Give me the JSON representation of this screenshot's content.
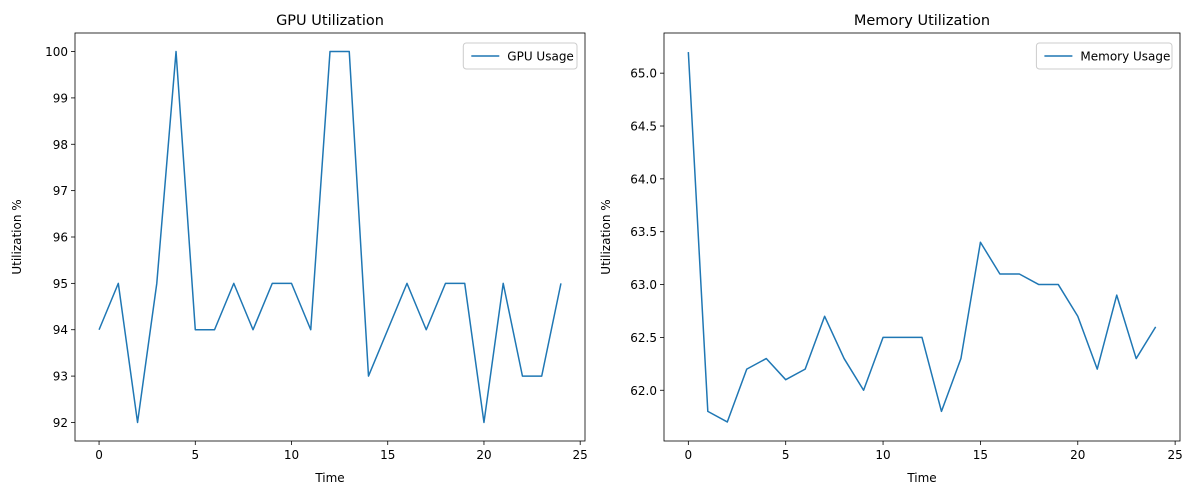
{
  "chart_data": [
    {
      "type": "line",
      "title": "GPU Utilization",
      "xlabel": "Time",
      "ylabel": "Utilization %",
      "xlim": [
        -1.25,
        25.25
      ],
      "ylim": [
        91.6,
        100.4
      ],
      "xticks": [
        0,
        5,
        10,
        15,
        20,
        25
      ],
      "yticks": [
        92,
        93,
        94,
        95,
        96,
        97,
        98,
        99,
        100
      ],
      "grid": false,
      "legend_position": "top-right",
      "series": [
        {
          "name": "GPU Usage",
          "color": "#1f77b4",
          "x": [
            0,
            1,
            2,
            3,
            4,
            5,
            6,
            7,
            8,
            9,
            10,
            11,
            12,
            13,
            14,
            15,
            16,
            17,
            18,
            19,
            20,
            21,
            22,
            23,
            24
          ],
          "y": [
            94,
            95,
            92,
            95,
            100,
            94,
            94,
            95,
            94,
            95,
            95,
            94,
            100,
            100,
            93,
            94,
            95,
            94,
            95,
            95,
            92,
            95,
            93,
            93,
            95
          ]
        }
      ]
    },
    {
      "type": "line",
      "title": "Memory Utilization",
      "xlabel": "Time",
      "ylabel": "Utilization %",
      "xlim": [
        -1.25,
        25.25
      ],
      "ylim": [
        61.52,
        65.38
      ],
      "xticks": [
        0,
        5,
        10,
        15,
        20,
        25
      ],
      "yticks": [
        62.0,
        62.5,
        63.0,
        63.5,
        64.0,
        64.5,
        65.0
      ],
      "ytick_labels": [
        "62.0",
        "62.5",
        "63.0",
        "63.5",
        "64.0",
        "64.5",
        "65.0"
      ],
      "grid": false,
      "legend_position": "top-right",
      "series": [
        {
          "name": "Memory Usage",
          "color": "#1f77b4",
          "x": [
            0,
            1,
            2,
            3,
            4,
            5,
            6,
            7,
            8,
            9,
            10,
            11,
            12,
            13,
            14,
            15,
            16,
            17,
            18,
            19,
            20,
            21,
            22,
            23,
            24
          ],
          "y": [
            65.2,
            61.8,
            61.7,
            62.2,
            62.3,
            62.1,
            62.2,
            62.7,
            62.3,
            62.0,
            62.5,
            62.5,
            62.5,
            61.8,
            62.3,
            63.4,
            63.1,
            63.1,
            63.0,
            63.0,
            62.7,
            62.2,
            62.9,
            62.3,
            62.6
          ]
        }
      ]
    }
  ]
}
